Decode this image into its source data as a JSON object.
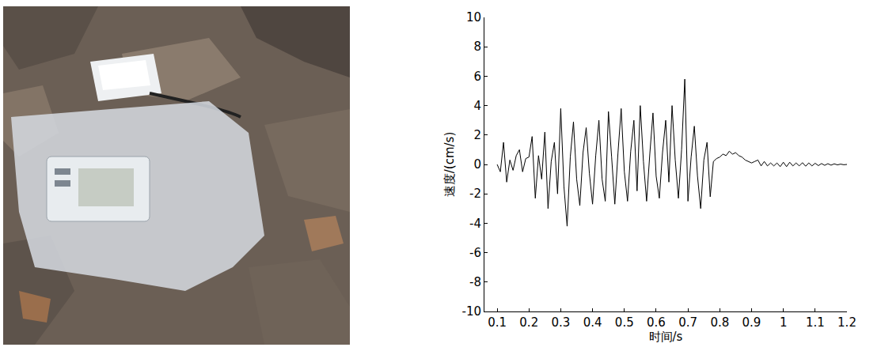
{
  "chart_data": {
    "type": "line",
    "x_label": "时间/s",
    "y_label": "速度/(cm/s)",
    "color": "#000000",
    "grid": false,
    "xlim": [
      0.06,
      1.2
    ],
    "ylim": [
      -10,
      10
    ],
    "xticks": [
      0.1,
      0.2,
      0.3,
      0.4,
      0.5,
      0.6,
      0.7,
      0.8,
      0.9,
      1.0,
      1.1,
      1.2
    ],
    "yticks": [
      -10,
      -8,
      -6,
      -4,
      -2,
      0,
      2,
      4,
      6,
      8,
      10
    ],
    "x": [
      0.1,
      0.11,
      0.12,
      0.13,
      0.14,
      0.15,
      0.16,
      0.17,
      0.18,
      0.19,
      0.2,
      0.21,
      0.22,
      0.23,
      0.24,
      0.25,
      0.26,
      0.27,
      0.28,
      0.29,
      0.3,
      0.31,
      0.32,
      0.33,
      0.34,
      0.35,
      0.36,
      0.37,
      0.38,
      0.39,
      0.4,
      0.41,
      0.42,
      0.43,
      0.44,
      0.45,
      0.46,
      0.47,
      0.48,
      0.49,
      0.5,
      0.51,
      0.52,
      0.53,
      0.54,
      0.55,
      0.56,
      0.57,
      0.58,
      0.59,
      0.6,
      0.61,
      0.62,
      0.63,
      0.64,
      0.65,
      0.66,
      0.67,
      0.68,
      0.69,
      0.7,
      0.71,
      0.72,
      0.73,
      0.74,
      0.75,
      0.76,
      0.77,
      0.78,
      0.79,
      0.8,
      0.81,
      0.82,
      0.83,
      0.84,
      0.85,
      0.86,
      0.87,
      0.88,
      0.89,
      0.9,
      0.91,
      0.92,
      0.93,
      0.94,
      0.95,
      0.96,
      0.97,
      0.98,
      0.99,
      1.0,
      1.01,
      1.02,
      1.03,
      1.04,
      1.05,
      1.06,
      1.07,
      1.08,
      1.09,
      1.1,
      1.11,
      1.12,
      1.13,
      1.14,
      1.15,
      1.16,
      1.17,
      1.18,
      1.19,
      1.2
    ],
    "values": [
      0,
      -0.5,
      1.5,
      -1.2,
      0.3,
      -0.4,
      0.6,
      1.0,
      -0.5,
      0.4,
      0.5,
      1.9,
      -2.3,
      0.6,
      -1.0,
      2.2,
      -3.0,
      0.2,
      1.5,
      -2.0,
      3.8,
      -1.5,
      -4.2,
      0.5,
      2.9,
      -1.0,
      -2.8,
      0.8,
      2.5,
      -0.6,
      -2.7,
      0.6,
      3.0,
      -1.0,
      -2.5,
      3.6,
      0.5,
      -2.7,
      0.8,
      3.8,
      -0.5,
      -2.5,
      0.9,
      3.0,
      -1.8,
      4.0,
      0.2,
      -2.5,
      0.7,
      3.5,
      -0.8,
      -2.3,
      0.8,
      3.0,
      -1.2,
      4.0,
      0.3,
      -2.3,
      1.0,
      5.8,
      -2.5,
      0.5,
      2.6,
      -0.8,
      -3.0,
      0.3,
      1.5,
      -2.2,
      0.2,
      0.4,
      0.5,
      0.7,
      0.6,
      0.9,
      0.7,
      0.8,
      0.6,
      0.5,
      0.3,
      0.2,
      0.1,
      0.2,
      0.3,
      -0.1,
      0.2,
      -0.1,
      0.1,
      -0.1,
      0.1,
      -0.15,
      0.15,
      -0.15,
      0.15,
      -0.1,
      0.1,
      -0.1,
      0.12,
      -0.12,
      0.1,
      -0.1,
      0.08,
      -0.08,
      0.06,
      -0.06,
      0.05,
      -0.05,
      0.04,
      -0.03,
      0.02,
      -0.02,
      0
    ]
  }
}
